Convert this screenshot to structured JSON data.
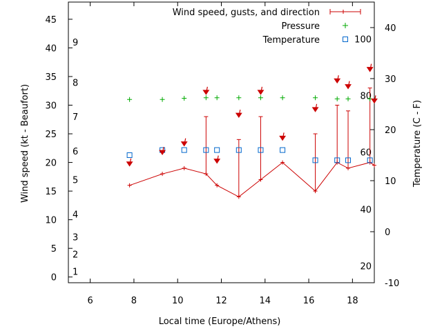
{
  "chart_data": {
    "type": "line",
    "xlabel": "Local time (Europe/Athens)",
    "ylabel": "Wind speed (kt - Beaufort)",
    "y2label": "Temperature (C - F)",
    "xlim": [
      5,
      19
    ],
    "ylim": [
      -1,
      48
    ],
    "y2lim": [
      -10,
      45
    ],
    "x_ticks": [
      6,
      8,
      10,
      12,
      14,
      16,
      18
    ],
    "y_ticks": [
      0,
      5,
      10,
      15,
      20,
      25,
      30,
      35,
      40,
      45
    ],
    "y2_ticks": [
      -10,
      0,
      10,
      20,
      30,
      40
    ],
    "beaufort_labels": [
      {
        "label": "1",
        "kt": 1
      },
      {
        "label": "2",
        "kt": 4
      },
      {
        "label": "3",
        "kt": 7
      },
      {
        "label": "4",
        "kt": 11
      },
      {
        "label": "5",
        "kt": 17
      },
      {
        "label": "6",
        "kt": 22
      },
      {
        "label": "7",
        "kt": 28
      },
      {
        "label": "8",
        "kt": 34
      },
      {
        "label": "9",
        "kt": 41
      }
    ],
    "fahrenheit_labels": [
      {
        "label": "20",
        "c": -6.7
      },
      {
        "label": "40",
        "c": 4.4
      },
      {
        "label": "60",
        "c": 15.6
      },
      {
        "label": "80",
        "c": 26.7
      },
      {
        "label": "100",
        "c": 37.8
      }
    ],
    "legend_position": "top-right",
    "series": [
      {
        "name": "Wind speed, gusts, and direction",
        "color": "#cc0000",
        "x": [
          7.8,
          9.3,
          10.3,
          11.3,
          11.8,
          12.8,
          13.8,
          14.8,
          16.3,
          17.3,
          17.8,
          18.8,
          19.0
        ],
        "values": [
          16,
          18,
          19,
          18,
          16,
          14,
          17,
          20,
          15,
          20,
          19,
          20,
          19.5
        ],
        "gusts": [
          null,
          null,
          null,
          28,
          null,
          24,
          28,
          null,
          25,
          30,
          29,
          33,
          null
        ],
        "direction_arrows": [
          {
            "x": 7.8,
            "y": 19.5
          },
          {
            "x": 9.3,
            "y": 21.5
          },
          {
            "x": 10.3,
            "y": 23
          },
          {
            "x": 11.3,
            "y": 32
          },
          {
            "x": 11.8,
            "y": 20
          },
          {
            "x": 12.8,
            "y": 28
          },
          {
            "x": 13.8,
            "y": 32
          },
          {
            "x": 14.8,
            "y": 24
          },
          {
            "x": 16.3,
            "y": 29
          },
          {
            "x": 17.3,
            "y": 34
          },
          {
            "x": 17.8,
            "y": 33
          },
          {
            "x": 18.8,
            "y": 36
          },
          {
            "x": 19.0,
            "y": 30.5
          }
        ]
      },
      {
        "name": "Pressure",
        "color": "#00aa00",
        "x": [
          7.8,
          9.3,
          10.3,
          11.3,
          11.8,
          12.8,
          13.8,
          14.8,
          16.3,
          17.3,
          17.8,
          18.8
        ],
        "values": [
          31,
          31,
          31.2,
          31.3,
          31.3,
          31.3,
          31.3,
          31.3,
          31.3,
          31.1,
          31.1,
          31.1
        ]
      },
      {
        "name": "Temperature",
        "color": "#0066cc",
        "axis": "y2",
        "x": [
          7.8,
          9.3,
          10.3,
          11.3,
          11.8,
          12.8,
          13.8,
          14.8,
          16.3,
          17.3,
          17.8,
          18.8
        ],
        "values": [
          15,
          16,
          16,
          16,
          16,
          16,
          16,
          16,
          14,
          14,
          14,
          14
        ]
      }
    ]
  }
}
